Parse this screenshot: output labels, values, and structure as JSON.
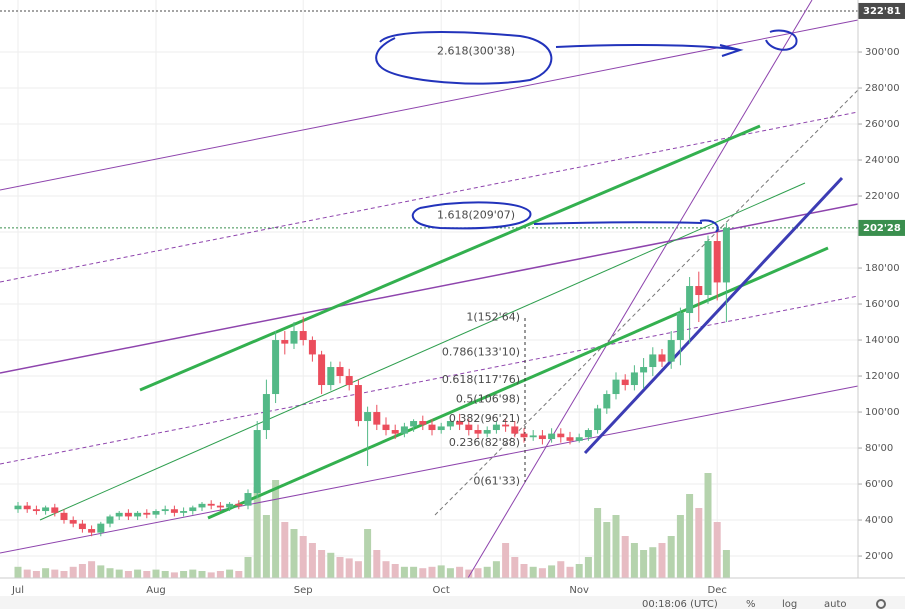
{
  "chart_data": {
    "type": "candlestick",
    "categories": [
      "Jul",
      null,
      null,
      null,
      null,
      null,
      null,
      null,
      null,
      null,
      null,
      null,
      null,
      null,
      null,
      "Aug",
      null,
      null,
      null,
      null,
      null,
      null,
      null,
      null,
      null,
      null,
      null,
      null,
      null,
      null,
      null,
      "Sep",
      null,
      null,
      null,
      null,
      null,
      null,
      null,
      null,
      null,
      null,
      null,
      null,
      null,
      null,
      "Oct",
      null,
      null,
      null,
      null,
      null,
      null,
      null,
      null,
      null,
      null,
      null,
      null,
      null,
      null,
      "Nov",
      null,
      null,
      null,
      null,
      null,
      null,
      null,
      null,
      null,
      null,
      null,
      null,
      null,
      null,
      "Dec",
      null
    ],
    "open": [
      46,
      48,
      46,
      45,
      47,
      44,
      40,
      38,
      35,
      33,
      38,
      42,
      44,
      42,
      44,
      43,
      45,
      46,
      44,
      45,
      47,
      49,
      48,
      47,
      49,
      48,
      55,
      90,
      110,
      140,
      138,
      145,
      140,
      132,
      115,
      125,
      120,
      115,
      95,
      100,
      93,
      90,
      88,
      92,
      95,
      93,
      90,
      92,
      95,
      93,
      90,
      88,
      90,
      93,
      92,
      88,
      86,
      87,
      85,
      88,
      86,
      84,
      86,
      90,
      102,
      110,
      118,
      115,
      122,
      125,
      132,
      128,
      140,
      155,
      170,
      165,
      195,
      172
    ],
    "high": [
      50,
      50,
      48,
      48,
      49,
      46,
      42,
      40,
      37,
      39,
      43,
      45,
      46,
      45,
      46,
      46,
      48,
      48,
      47,
      48,
      50,
      51,
      50,
      50,
      51,
      57,
      95,
      118,
      145,
      145,
      150,
      153,
      142,
      134,
      128,
      128,
      124,
      118,
      103,
      104,
      97,
      93,
      94,
      96,
      98,
      96,
      94,
      96,
      99,
      96,
      93,
      92,
      95,
      96,
      95,
      91,
      90,
      90,
      91,
      91,
      89,
      88,
      91,
      104,
      112,
      122,
      121,
      126,
      130,
      136,
      135,
      145,
      158,
      175,
      178,
      198,
      200,
      205
    ],
    "low": [
      44,
      44,
      43,
      43,
      42,
      38,
      36,
      33,
      31,
      31,
      36,
      40,
      40,
      40,
      41,
      41,
      43,
      42,
      42,
      43,
      45,
      46,
      45,
      45,
      46,
      46,
      52,
      85,
      105,
      132,
      135,
      137,
      128,
      110,
      112,
      116,
      112,
      92,
      70,
      90,
      87,
      85,
      86,
      89,
      90,
      87,
      88,
      90,
      90,
      87,
      85,
      86,
      88,
      89,
      86,
      83,
      84,
      82,
      83,
      83,
      82,
      83,
      84,
      88,
      99,
      107,
      112,
      112,
      113,
      120,
      125,
      124,
      126,
      138,
      150,
      160,
      162,
      150
    ],
    "close": [
      48,
      46,
      45,
      47,
      44,
      40,
      38,
      35,
      33,
      38,
      42,
      44,
      42,
      44,
      43,
      45,
      46,
      44,
      45,
      47,
      49,
      48,
      47,
      49,
      48,
      55,
      90,
      110,
      140,
      138,
      145,
      140,
      132,
      115,
      125,
      120,
      115,
      95,
      100,
      93,
      90,
      88,
      92,
      95,
      93,
      90,
      92,
      95,
      93,
      90,
      88,
      90,
      93,
      92,
      88,
      86,
      87,
      85,
      88,
      86,
      84,
      86,
      90,
      102,
      110,
      118,
      115,
      122,
      125,
      132,
      128,
      140,
      155,
      170,
      165,
      195,
      172,
      202.28
    ],
    "volume": [
      8,
      6,
      5,
      7,
      6,
      5,
      8,
      10,
      12,
      9,
      7,
      6,
      5,
      6,
      5,
      6,
      5,
      4,
      5,
      6,
      5,
      4,
      5,
      6,
      5,
      15,
      65,
      45,
      70,
      40,
      35,
      30,
      25,
      20,
      18,
      15,
      14,
      12,
      35,
      20,
      12,
      10,
      8,
      8,
      7,
      8,
      9,
      7,
      8,
      6,
      7,
      8,
      12,
      25,
      15,
      10,
      8,
      7,
      9,
      12,
      8,
      10,
      15,
      50,
      40,
      45,
      30,
      25,
      20,
      22,
      25,
      30,
      45,
      60,
      50,
      75,
      40,
      20
    ],
    "vlim": [
      0,
      100
    ],
    "up_color": "#53b987",
    "down_color": "#eb4d5c",
    "up_volume_color": "#b5d3ad",
    "down_volume_color": "#e7bcc3",
    "ylim": [
      7.8,
      328.9
    ],
    "yticks": [
      {
        "value": 20,
        "label": "20'00"
      },
      {
        "value": 40,
        "label": "40'00"
      },
      {
        "value": 60,
        "label": "60'00"
      },
      {
        "value": 80,
        "label": "80'00"
      },
      {
        "value": 100,
        "label": "100'00"
      },
      {
        "value": 120,
        "label": "120'00"
      },
      {
        "value": 140,
        "label": "140'00"
      },
      {
        "value": 160,
        "label": "160'00"
      },
      {
        "value": 180,
        "label": "180'00"
      },
      {
        "value": 200,
        "label": "200'00"
      },
      {
        "value": 220,
        "label": "220'00"
      },
      {
        "value": 240,
        "label": "240'00"
      },
      {
        "value": 260,
        "label": "260'00"
      },
      {
        "value": 280,
        "label": "280'00"
      },
      {
        "value": 300,
        "label": "300'00"
      }
    ],
    "grid": true,
    "fib_levels": [
      {
        "value": 152.64,
        "label": "1(152'64)"
      },
      {
        "value": 133.1,
        "label": "0.786(133'10)"
      },
      {
        "value": 117.76,
        "label": "0.618(117'76)"
      },
      {
        "value": 106.98,
        "label": "0.5(106'98)"
      },
      {
        "value": 96.21,
        "label": "0.382(96'21)"
      },
      {
        "value": 82.88,
        "label": "0.236(82'88)"
      },
      {
        "value": 61.33,
        "label": "0(61'33)"
      }
    ],
    "extension_levels": [
      {
        "value": 300.38,
        "label": "2.618(300'38)"
      },
      {
        "value": 209.07,
        "label": "1.618(209'07)"
      }
    ],
    "price_markers": [
      {
        "value": 322.81,
        "label": "322'81",
        "color": "#4a4a4a"
      },
      {
        "value": 202.28,
        "label": "202'28",
        "color": "#3a8f4e"
      }
    ]
  },
  "toolbar": {
    "time": "00:18:06 (UTC)",
    "percent": "%",
    "log": "log",
    "auto": "auto"
  }
}
